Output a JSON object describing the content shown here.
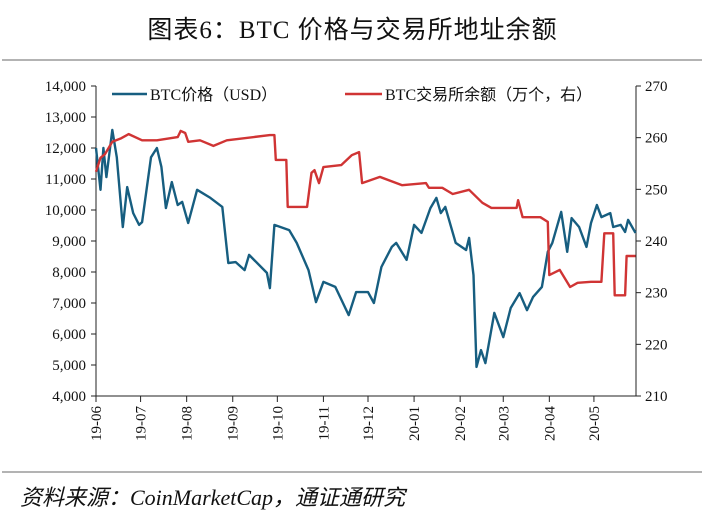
{
  "title": "图表6：BTC 价格与交易所地址余额",
  "source": "资料来源：CoinMarketCap，通证通研究",
  "chart_data": {
    "type": "line",
    "title": "图表6：BTC 价格与交易所地址余额",
    "x_range": [
      "2019-06-01",
      "2020-06-01"
    ],
    "x_ticks": [
      "19-06",
      "19-07",
      "19-08",
      "19-09",
      "19-10",
      "19-11",
      "19-12",
      "20-01",
      "20-02",
      "20-03",
      "20-04",
      "20-05"
    ],
    "y_left": {
      "range": [
        4000,
        14000
      ],
      "ticks": [
        "4,000",
        "5,000",
        "6,000",
        "7,000",
        "8,000",
        "9,000",
        "10,000",
        "11,000",
        "12,000",
        "13,000",
        "14,000"
      ]
    },
    "y_right": {
      "range": [
        210,
        270
      ],
      "ticks": [
        "210",
        "220",
        "230",
        "240",
        "250",
        "260",
        "270"
      ]
    },
    "grid": false,
    "legend_placement": "top",
    "series": [
      {
        "name": "BTC价格（USD）",
        "axis": "left",
        "color": "#175E80",
        "points": [
          [
            "2019-06-01",
            12000
          ],
          [
            "2019-06-04",
            10650
          ],
          [
            "2019-06-06",
            12000
          ],
          [
            "2019-06-08",
            11060
          ],
          [
            "2019-06-12",
            12580
          ],
          [
            "2019-06-15",
            11700
          ],
          [
            "2019-06-19",
            9450
          ],
          [
            "2019-06-22",
            10740
          ],
          [
            "2019-06-26",
            9900
          ],
          [
            "2019-06-30",
            9520
          ],
          [
            "2019-07-02",
            9610
          ],
          [
            "2019-07-08",
            11700
          ],
          [
            "2019-07-12",
            12000
          ],
          [
            "2019-07-15",
            11390
          ],
          [
            "2019-07-18",
            10060
          ],
          [
            "2019-07-22",
            10900
          ],
          [
            "2019-07-26",
            10160
          ],
          [
            "2019-07-29",
            10260
          ],
          [
            "2019-08-02",
            9580
          ],
          [
            "2019-08-08",
            10650
          ],
          [
            "2019-08-17",
            10390
          ],
          [
            "2019-08-25",
            10100
          ],
          [
            "2019-08-29",
            8290
          ],
          [
            "2019-09-03",
            8320
          ],
          [
            "2019-09-09",
            8060
          ],
          [
            "2019-09-12",
            8550
          ],
          [
            "2019-09-24",
            7970
          ],
          [
            "2019-09-26",
            7480
          ],
          [
            "2019-09-29",
            9520
          ],
          [
            "2019-10-09",
            9350
          ],
          [
            "2019-10-14",
            8940
          ],
          [
            "2019-10-22",
            8060
          ],
          [
            "2019-10-27",
            7030
          ],
          [
            "2019-11-01",
            7680
          ],
          [
            "2019-11-09",
            7520
          ],
          [
            "2019-11-18",
            6610
          ],
          [
            "2019-11-23",
            7350
          ],
          [
            "2019-12-01",
            7350
          ],
          [
            "2019-12-05",
            7000
          ],
          [
            "2019-12-10",
            8160
          ],
          [
            "2019-12-17",
            8810
          ],
          [
            "2019-12-20",
            8940
          ],
          [
            "2019-12-27",
            8390
          ],
          [
            "2020-01-01",
            9520
          ],
          [
            "2020-01-06",
            9260
          ],
          [
            "2020-01-12",
            10060
          ],
          [
            "2020-01-16",
            10390
          ],
          [
            "2020-01-19",
            9900
          ],
          [
            "2020-01-22",
            10100
          ],
          [
            "2020-01-29",
            8940
          ],
          [
            "2020-02-05",
            8710
          ],
          [
            "2020-02-07",
            9100
          ],
          [
            "2020-02-10",
            7900
          ],
          [
            "2020-02-12",
            4940
          ],
          [
            "2020-02-15",
            5480
          ],
          [
            "2020-02-18",
            5060
          ],
          [
            "2020-02-24",
            6680
          ],
          [
            "2020-03-01",
            5900
          ],
          [
            "2020-03-06",
            6840
          ],
          [
            "2020-03-12",
            7320
          ],
          [
            "2020-03-17",
            6770
          ],
          [
            "2020-03-21",
            7190
          ],
          [
            "2020-03-27",
            7520
          ],
          [
            "2020-03-31",
            8650
          ],
          [
            "2020-04-03",
            8940
          ],
          [
            "2020-04-09",
            9940
          ],
          [
            "2020-04-13",
            8650
          ],
          [
            "2020-04-16",
            9740
          ],
          [
            "2020-04-21",
            9450
          ],
          [
            "2020-04-26",
            8810
          ],
          [
            "2020-04-29",
            9580
          ],
          [
            "2020-05-03",
            10160
          ],
          [
            "2020-05-06",
            9770
          ],
          [
            "2020-05-12",
            9900
          ],
          [
            "2020-05-14",
            9450
          ],
          [
            "2020-05-19",
            9520
          ],
          [
            "2020-05-22",
            9290
          ],
          [
            "2020-05-24",
            9680
          ],
          [
            "2020-05-29",
            9260
          ]
        ]
      },
      {
        "name": "BTC交易所余额（万个，右）",
        "axis": "right",
        "color": "#D03434",
        "points": [
          [
            "2019-06-01",
            253.4
          ],
          [
            "2019-06-04",
            256.1
          ],
          [
            "2019-06-07",
            256.8
          ],
          [
            "2019-06-12",
            259.2
          ],
          [
            "2019-06-18",
            259.9
          ],
          [
            "2019-06-23",
            260.7
          ],
          [
            "2019-07-02",
            259.5
          ],
          [
            "2019-07-12",
            259.5
          ],
          [
            "2019-07-26",
            260.1
          ],
          [
            "2019-07-28",
            261.3
          ],
          [
            "2019-07-31",
            260.9
          ],
          [
            "2019-08-02",
            259.2
          ],
          [
            "2019-08-10",
            259.5
          ],
          [
            "2019-08-19",
            258.4
          ],
          [
            "2019-08-28",
            259.5
          ],
          [
            "2019-09-26",
            260.5
          ],
          [
            "2019-09-29",
            260.5
          ],
          [
            "2019-09-30",
            255.7
          ],
          [
            "2019-10-07",
            255.7
          ],
          [
            "2019-10-08",
            246.6
          ],
          [
            "2019-10-21",
            246.6
          ],
          [
            "2019-10-24",
            253.2
          ],
          [
            "2019-10-26",
            253.7
          ],
          [
            "2019-10-29",
            251.2
          ],
          [
            "2019-11-01",
            254.3
          ],
          [
            "2019-11-13",
            254.7
          ],
          [
            "2019-11-20",
            256.6
          ],
          [
            "2019-11-25",
            257.2
          ],
          [
            "2019-11-27",
            251.2
          ],
          [
            "2019-12-09",
            252.4
          ],
          [
            "2019-12-24",
            250.8
          ],
          [
            "2020-01-09",
            251.2
          ],
          [
            "2020-01-11",
            250.3
          ],
          [
            "2020-01-20",
            250.3
          ],
          [
            "2020-01-27",
            249.1
          ],
          [
            "2020-02-07",
            249.9
          ],
          [
            "2020-02-16",
            247.4
          ],
          [
            "2020-02-22",
            246.4
          ],
          [
            "2020-03-10",
            246.4
          ],
          [
            "2020-03-11",
            247.9
          ],
          [
            "2020-03-14",
            244.6
          ],
          [
            "2020-03-26",
            244.6
          ],
          [
            "2020-03-31",
            243.7
          ],
          [
            "2020-04-01",
            233.4
          ],
          [
            "2020-04-08",
            234.4
          ],
          [
            "2020-04-15",
            231.1
          ],
          [
            "2020-04-20",
            231.9
          ],
          [
            "2020-04-29",
            232.1
          ],
          [
            "2020-05-06",
            232.1
          ],
          [
            "2020-05-08",
            241.5
          ],
          [
            "2020-05-14",
            241.5
          ],
          [
            "2020-05-15",
            229.5
          ],
          [
            "2020-05-22",
            229.5
          ],
          [
            "2020-05-23",
            237.1
          ],
          [
            "2020-05-29",
            237.1
          ]
        ]
      }
    ]
  }
}
